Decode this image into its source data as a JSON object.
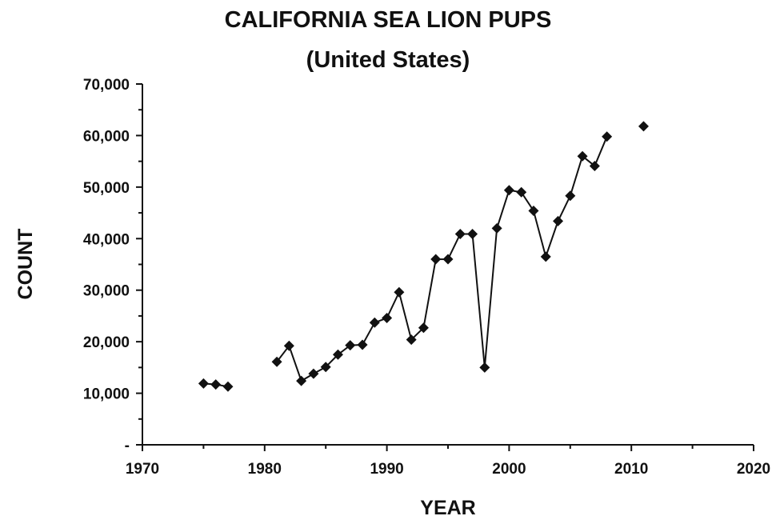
{
  "chart_data": {
    "type": "scatter",
    "title": "CALIFORNIA SEA LION PUPS",
    "subtitle": "(United States)",
    "xlabel": "YEAR",
    "ylabel": "COUNT",
    "xlim": [
      1970,
      2020
    ],
    "ylim": [
      0,
      70000
    ],
    "x_ticks": [
      1970,
      1980,
      1990,
      2000,
      2010,
      2020
    ],
    "x_tick_labels": [
      "1970",
      "1980",
      "1990",
      "2000",
      "2010",
      "2020"
    ],
    "y_ticks": [
      0,
      10000,
      20000,
      30000,
      40000,
      50000,
      60000,
      70000
    ],
    "y_tick_labels": [
      "-",
      "10,000",
      "20,000",
      "30,000",
      "40,000",
      "50,000",
      "60,000",
      "70,000"
    ],
    "grid": false,
    "legend": "none",
    "marker": "diamond",
    "color": "#111111",
    "series": [
      {
        "points": [
          {
            "x": 1975,
            "y": 11900
          },
          {
            "x": 1976,
            "y": 11700
          },
          {
            "x": 1977,
            "y": 11300
          },
          {
            "x": 1981,
            "y": 16100
          },
          {
            "x": 1982,
            "y": 19200
          },
          {
            "x": 1983,
            "y": 12400
          },
          {
            "x": 1984,
            "y": 13800
          },
          {
            "x": 1985,
            "y": 15100
          },
          {
            "x": 1986,
            "y": 17500
          },
          {
            "x": 1987,
            "y": 19300
          },
          {
            "x": 1988,
            "y": 19400
          },
          {
            "x": 1989,
            "y": 23700
          },
          {
            "x": 1990,
            "y": 24600
          },
          {
            "x": 1991,
            "y": 29600
          },
          {
            "x": 1992,
            "y": 20400
          },
          {
            "x": 1993,
            "y": 22700
          },
          {
            "x": 1994,
            "y": 36000
          },
          {
            "x": 1995,
            "y": 36000
          },
          {
            "x": 1996,
            "y": 40900
          },
          {
            "x": 1997,
            "y": 40900
          },
          {
            "x": 1998,
            "y": 15000
          },
          {
            "x": 1999,
            "y": 42000
          },
          {
            "x": 2000,
            "y": 49400
          },
          {
            "x": 2001,
            "y": 49000
          },
          {
            "x": 2002,
            "y": 45400
          },
          {
            "x": 2003,
            "y": 36500
          },
          {
            "x": 2004,
            "y": 43400
          },
          {
            "x": 2005,
            "y": 48300
          },
          {
            "x": 2006,
            "y": 56000
          },
          {
            "x": 2007,
            "y": 54100
          },
          {
            "x": 2008,
            "y": 59800
          },
          {
            "x": 2011,
            "y": 61800
          }
        ]
      }
    ]
  }
}
